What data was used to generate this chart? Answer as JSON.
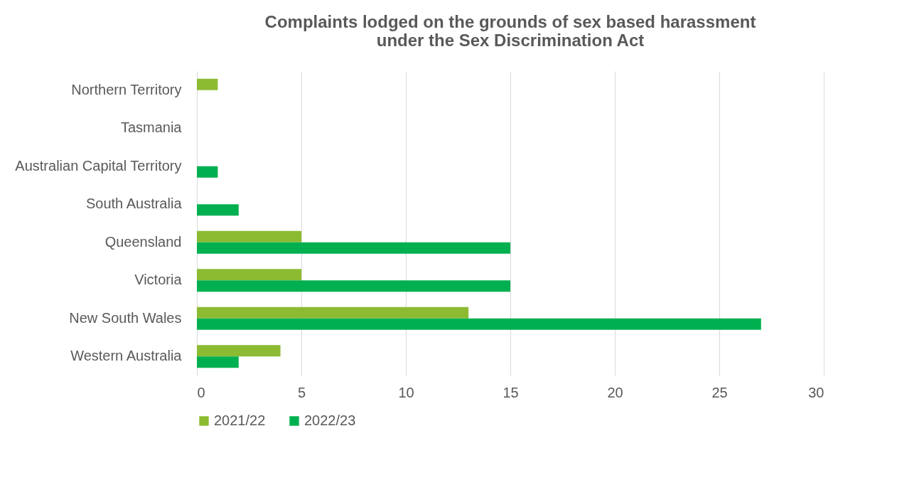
{
  "chart_data": {
    "type": "bar",
    "orientation": "horizontal",
    "title": "Complaints lodged on the grounds of sex based harassment\nunder the Sex Discrimination Act",
    "categories": [
      "Northern Territory",
      "Tasmania",
      "Australian Capital Territory",
      "South Australia",
      "Queensland",
      "Victoria",
      "New South Wales",
      "Western Australia"
    ],
    "series": [
      {
        "name": "2021/22",
        "color": "#8cbb32",
        "values": [
          1,
          0,
          0,
          0,
          5,
          5,
          13,
          4
        ]
      },
      {
        "name": "2022/23",
        "color": "#00b050",
        "values": [
          0,
          0,
          1,
          2,
          15,
          15,
          27,
          2
        ]
      }
    ],
    "xlim": [
      0,
      30
    ],
    "xticks": [
      0,
      5,
      10,
      15,
      20,
      25,
      30
    ],
    "grid": "x",
    "legend": "bottom"
  }
}
